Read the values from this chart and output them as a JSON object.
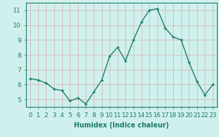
{
  "x": [
    0,
    1,
    2,
    3,
    4,
    5,
    6,
    7,
    8,
    9,
    10,
    11,
    12,
    13,
    14,
    15,
    16,
    17,
    18,
    19,
    20,
    21,
    22,
    23
  ],
  "y": [
    6.4,
    6.3,
    6.1,
    5.7,
    5.6,
    4.9,
    5.1,
    4.7,
    5.5,
    6.3,
    7.9,
    8.5,
    7.6,
    9.0,
    10.2,
    11.0,
    11.1,
    9.8,
    9.2,
    9.0,
    7.5,
    6.2,
    5.3,
    6.0
  ],
  "xlabel": "Humidex (Indice chaleur)",
  "line_color": "#1a7a6a",
  "marker": "+",
  "background_color": "#cff0ec",
  "grid_color": "#d4b8b8",
  "tick_color": "#1a7a6a",
  "xlim": [
    -0.5,
    23.5
  ],
  "ylim": [
    4.5,
    11.5
  ],
  "yticks": [
    5,
    6,
    7,
    8,
    9,
    10,
    11
  ],
  "xticks": [
    0,
    1,
    2,
    3,
    4,
    5,
    6,
    7,
    8,
    9,
    10,
    11,
    12,
    13,
    14,
    15,
    16,
    17,
    18,
    19,
    20,
    21,
    22,
    23
  ],
  "xtick_labels": [
    "0",
    "1",
    "2",
    "3",
    "4",
    "5",
    "6",
    "7",
    "8",
    "9",
    "10",
    "11",
    "12",
    "13",
    "14",
    "15",
    "16",
    "17",
    "18",
    "19",
    "20",
    "21",
    "22",
    "23"
  ],
  "xlabel_fontsize": 7,
  "tick_fontsize": 6.5,
  "line_width": 1.0,
  "marker_size": 3.5
}
